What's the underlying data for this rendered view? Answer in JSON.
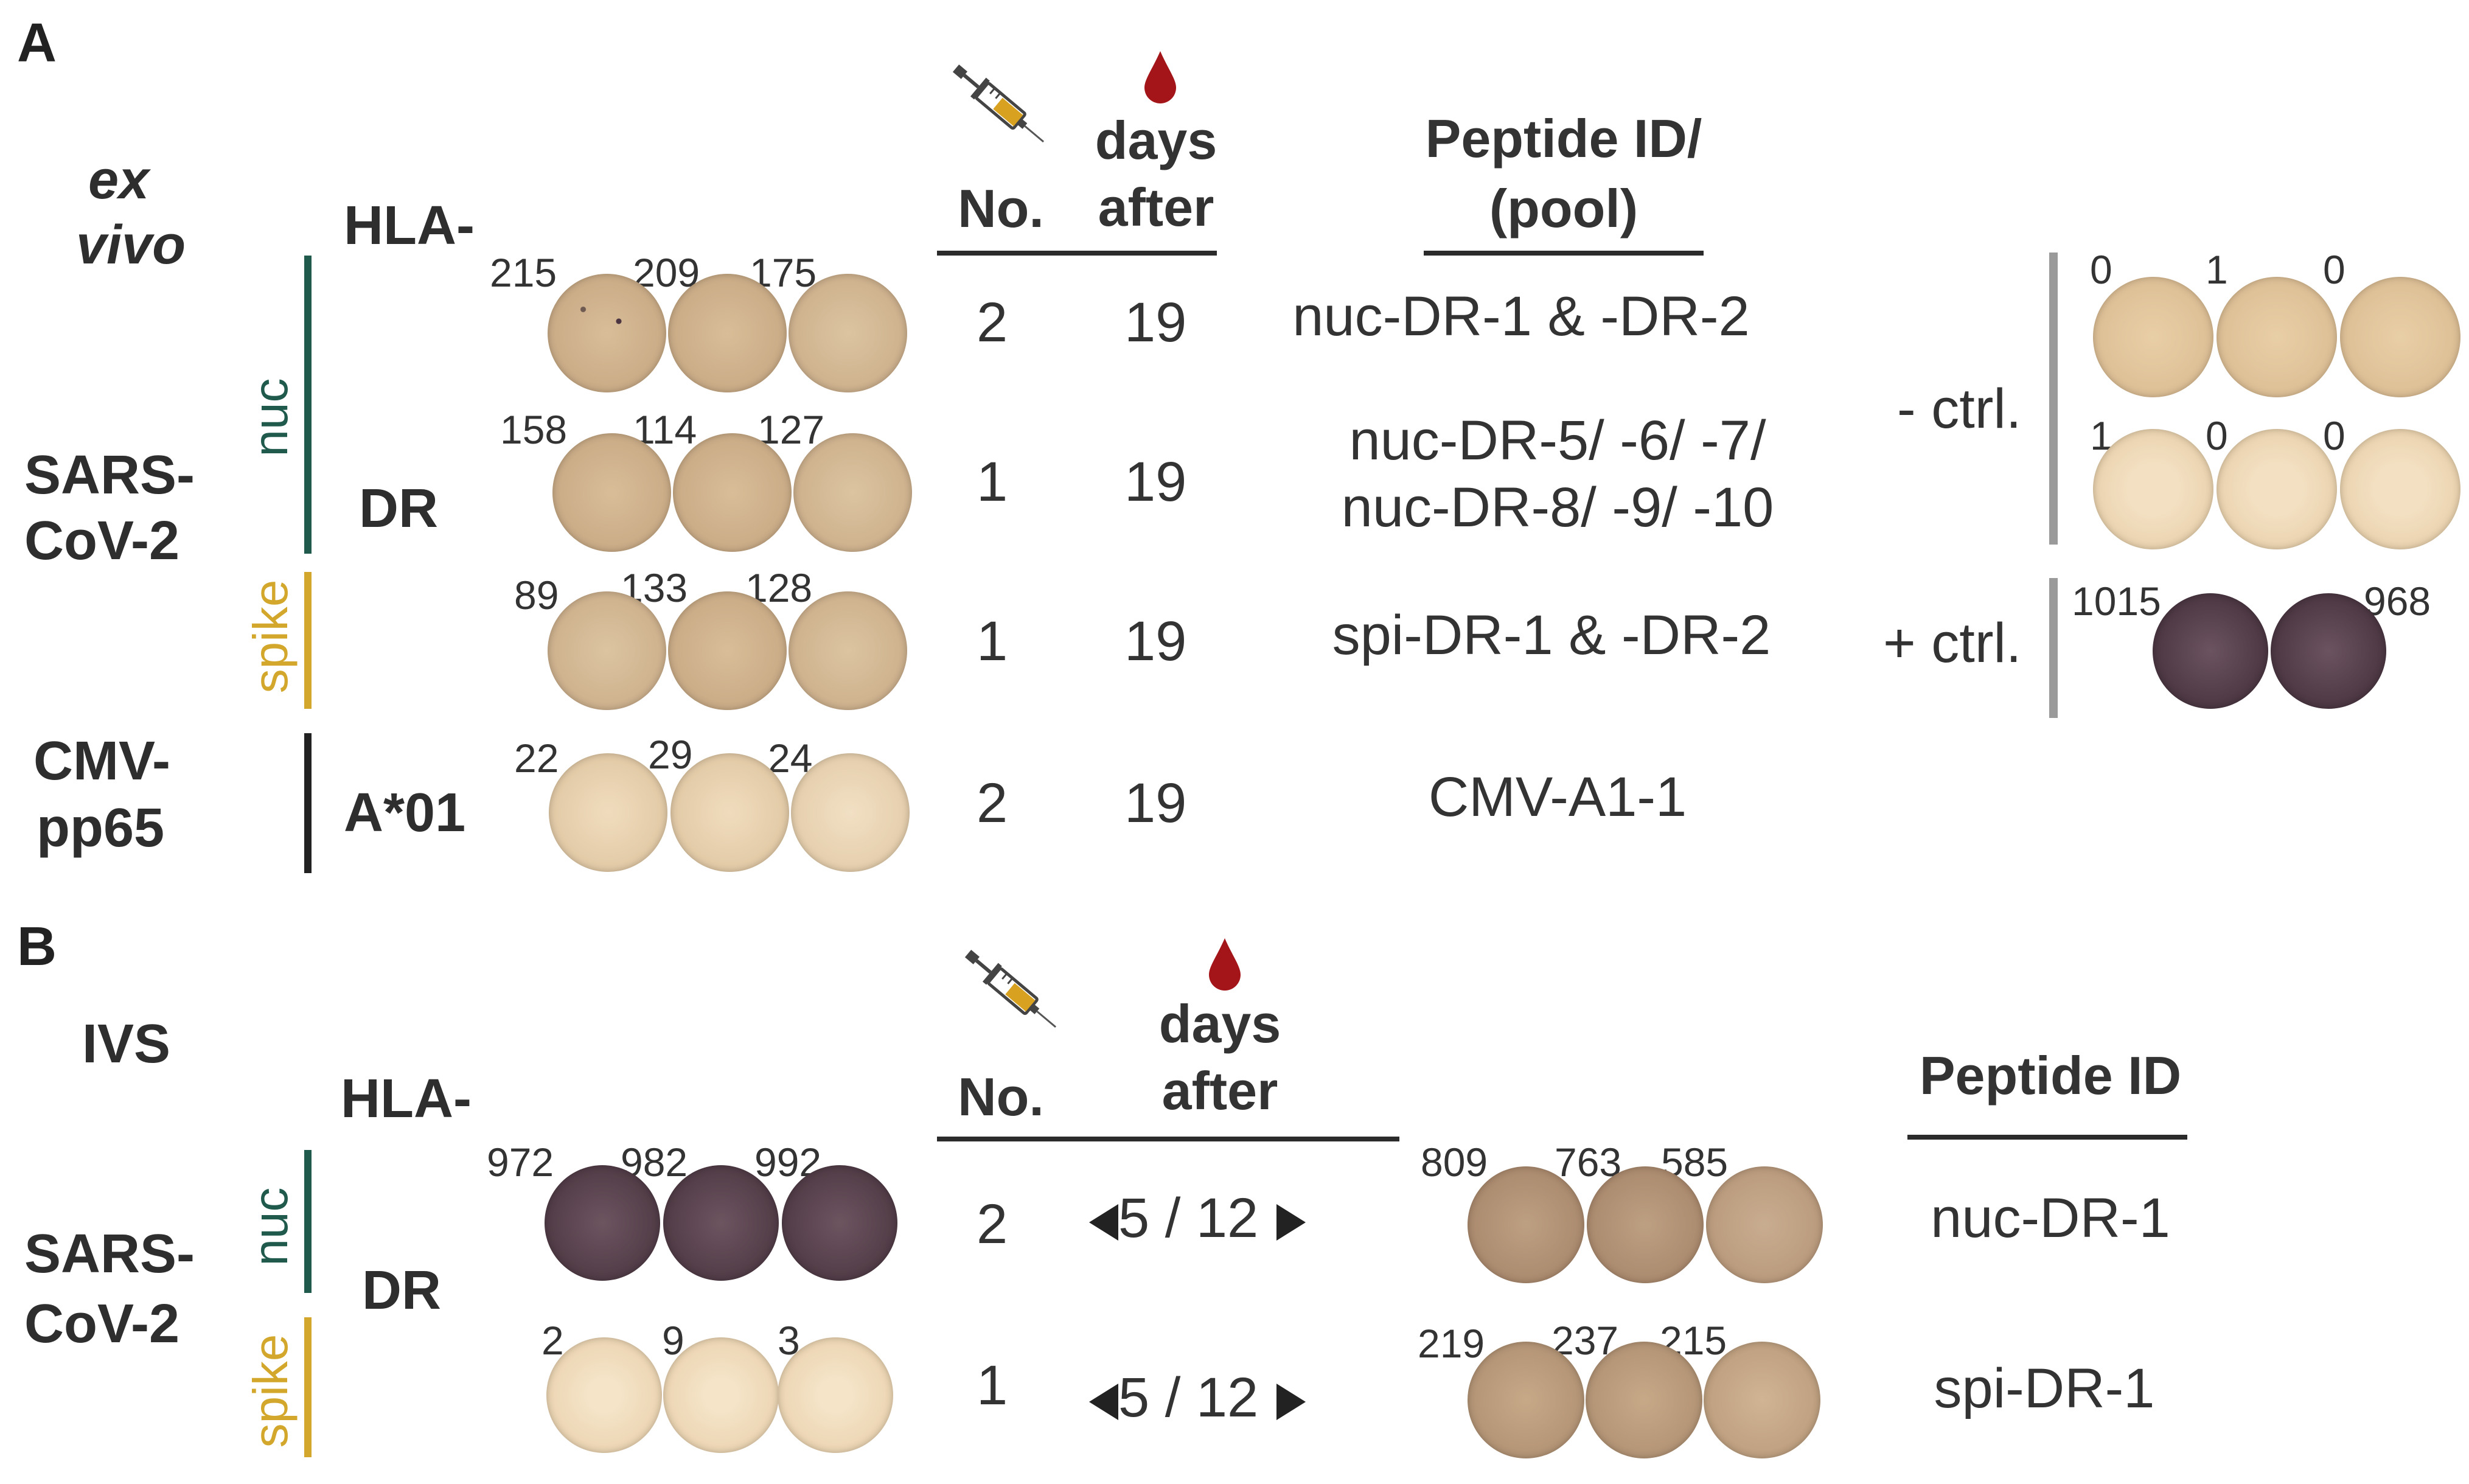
{
  "panel_a": {
    "letter": "A",
    "condition": [
      "ex",
      "vivo"
    ],
    "hla_label": "HLA-",
    "header": {
      "no": "No.",
      "days": "days",
      "after": "after",
      "peptide_line1": "Peptide ID/",
      "peptide_line2": "(pool)"
    },
    "groups": [
      {
        "virus": [
          "SARS-",
          "CoV-2"
        ],
        "hla": "DR",
        "sub": "nuc",
        "sub_color": "#1f5a4d"
      },
      {
        "sub": "spike",
        "sub_color": "#d3a72b"
      },
      {
        "virus": [
          "CMV-",
          "pp65"
        ],
        "hla": "A*01",
        "sub_color": "#222222"
      }
    ],
    "rows": [
      {
        "counts": [
          "215",
          "209",
          "175"
        ],
        "no": "2",
        "days": "19",
        "peptide": [
          "nuc-DR-1 & -DR-2"
        ]
      },
      {
        "counts": [
          "158",
          "114",
          "127"
        ],
        "no": "1",
        "days": "19",
        "peptide": [
          "nuc-DR-5/ -6/ -7/",
          "nuc-DR-8/ -9/ -10"
        ]
      },
      {
        "counts": [
          "89",
          "133",
          "128"
        ],
        "no": "1",
        "days": "19",
        "peptide": [
          "spi-DR-1 & -DR-2"
        ]
      },
      {
        "counts": [
          "22",
          "29",
          "24"
        ],
        "no": "2",
        "days": "19",
        "peptide": [
          "CMV-A1-1"
        ]
      }
    ],
    "controls": {
      "neg_label": "- ctrl.",
      "neg_counts_row1": [
        "0",
        "1",
        "0"
      ],
      "neg_counts_row2": [
        "1",
        "0",
        "0"
      ],
      "pos_label": "+ ctrl.",
      "pos_counts": [
        "1015",
        "968"
      ]
    }
  },
  "panel_b": {
    "letter": "B",
    "condition": "IVS",
    "hla_label": "HLA-",
    "hla": "DR",
    "virus": [
      "SARS-",
      "CoV-2"
    ],
    "header": {
      "no": "No.",
      "days": "days",
      "after": "after",
      "peptide": "Peptide ID"
    },
    "rows": [
      {
        "sub": "nuc",
        "counts_left": [
          "972",
          "982",
          "992"
        ],
        "no": "2",
        "days": "5 / 12",
        "counts_right": [
          "809",
          "763",
          "585"
        ],
        "peptide": "nuc-DR-1"
      },
      {
        "sub": "spike",
        "counts_left": [
          "2",
          "9",
          "3"
        ],
        "no": "1",
        "days": "5 / 12",
        "counts_right": [
          "219",
          "237",
          "215"
        ],
        "peptide": "spi-DR-1"
      }
    ]
  },
  "icons": [
    "syringe-icon",
    "blood-drop-icon"
  ],
  "colors": {
    "nuc": "#1f5a4d",
    "spike": "#d3a72b",
    "neg_ctrl_bar": "#9a9a9a",
    "well": "#e9cfa6",
    "spot": "#3b2a35"
  }
}
